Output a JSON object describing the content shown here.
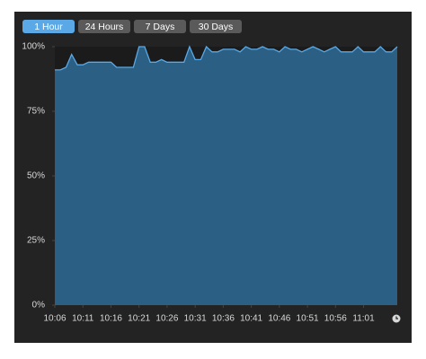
{
  "tabs": [
    {
      "label": "1 Hour",
      "active": true
    },
    {
      "label": "24 Hours",
      "active": false
    },
    {
      "label": "7 Days",
      "active": false
    },
    {
      "label": "30 Days",
      "active": false
    }
  ],
  "chart_data": {
    "type": "area",
    "x": [
      "10:06",
      "10:07",
      "10:08",
      "10:09",
      "10:10",
      "10:11",
      "10:12",
      "10:13",
      "10:14",
      "10:15",
      "10:16",
      "10:17",
      "10:18",
      "10:19",
      "10:20",
      "10:21",
      "10:22",
      "10:23",
      "10:24",
      "10:25",
      "10:26",
      "10:27",
      "10:28",
      "10:29",
      "10:30",
      "10:31",
      "10:32",
      "10:33",
      "10:34",
      "10:35",
      "10:36",
      "10:37",
      "10:38",
      "10:39",
      "10:40",
      "10:41",
      "10:42",
      "10:43",
      "10:44",
      "10:45",
      "10:46",
      "10:47",
      "10:48",
      "10:49",
      "10:50",
      "10:51",
      "10:52",
      "10:53",
      "10:54",
      "10:55",
      "10:56",
      "10:57",
      "10:58",
      "10:59",
      "11:00",
      "11:01",
      "11:02",
      "11:03",
      "11:04",
      "11:05",
      "11:06",
      "11:07"
    ],
    "values": [
      91,
      91,
      92,
      97,
      93,
      93,
      94,
      94,
      94,
      94,
      94,
      92,
      92,
      92,
      92,
      100,
      100,
      94,
      94,
      95,
      94,
      94,
      94,
      94,
      100,
      95,
      95,
      100,
      98,
      98,
      99,
      99,
      99,
      98,
      100,
      99,
      99,
      100,
      99,
      99,
      98,
      100,
      99,
      99,
      98,
      99,
      100,
      99,
      98,
      99,
      100,
      98,
      98,
      98,
      100,
      98,
      98,
      98,
      100,
      98,
      98,
      100
    ],
    "color": "#5aa9e6",
    "fill": "#2b5f84",
    "xlim": [
      "10:06",
      "11:07"
    ],
    "xticks": [
      "10:06",
      "10:11",
      "10:16",
      "10:21",
      "10:26",
      "10:31",
      "10:36",
      "10:41",
      "10:46",
      "10:51",
      "10:56",
      "11:01"
    ],
    "ylim": [
      0,
      100
    ],
    "yticks": [
      {
        "value": 0,
        "label": "0%"
      },
      {
        "value": 25,
        "label": "25%"
      },
      {
        "value": 50,
        "label": "50%"
      },
      {
        "value": 75,
        "label": "75%"
      },
      {
        "value": 100,
        "label": "100%"
      }
    ]
  }
}
